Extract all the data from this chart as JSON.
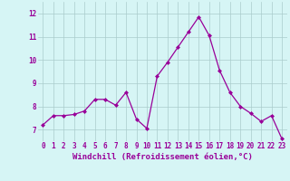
{
  "x": [
    0,
    1,
    2,
    3,
    4,
    5,
    6,
    7,
    8,
    9,
    10,
    11,
    12,
    13,
    14,
    15,
    16,
    17,
    18,
    19,
    20,
    21,
    22,
    23
  ],
  "y": [
    7.2,
    7.6,
    7.6,
    7.65,
    7.8,
    8.3,
    8.3,
    8.05,
    8.6,
    7.45,
    7.05,
    9.3,
    9.9,
    10.55,
    11.2,
    11.85,
    11.05,
    9.55,
    8.6,
    8.0,
    7.7,
    7.35,
    7.6,
    6.6
  ],
  "xlim": [
    -0.5,
    23.5
  ],
  "ylim": [
    6.5,
    12.5
  ],
  "yticks": [
    7,
    8,
    9,
    10,
    11,
    12
  ],
  "xticks": [
    0,
    1,
    2,
    3,
    4,
    5,
    6,
    7,
    8,
    9,
    10,
    11,
    12,
    13,
    14,
    15,
    16,
    17,
    18,
    19,
    20,
    21,
    22,
    23
  ],
  "xlabel": "Windchill (Refroidissement éolien,°C)",
  "line_color": "#990099",
  "marker": "D",
  "marker_size": 2.0,
  "bg_color": "#d6f5f5",
  "grid_color": "#aacccc",
  "xlabel_fontsize": 6.5,
  "tick_fontsize": 5.5,
  "tick_color": "#990099",
  "label_color": "#990099",
  "linewidth": 0.9
}
